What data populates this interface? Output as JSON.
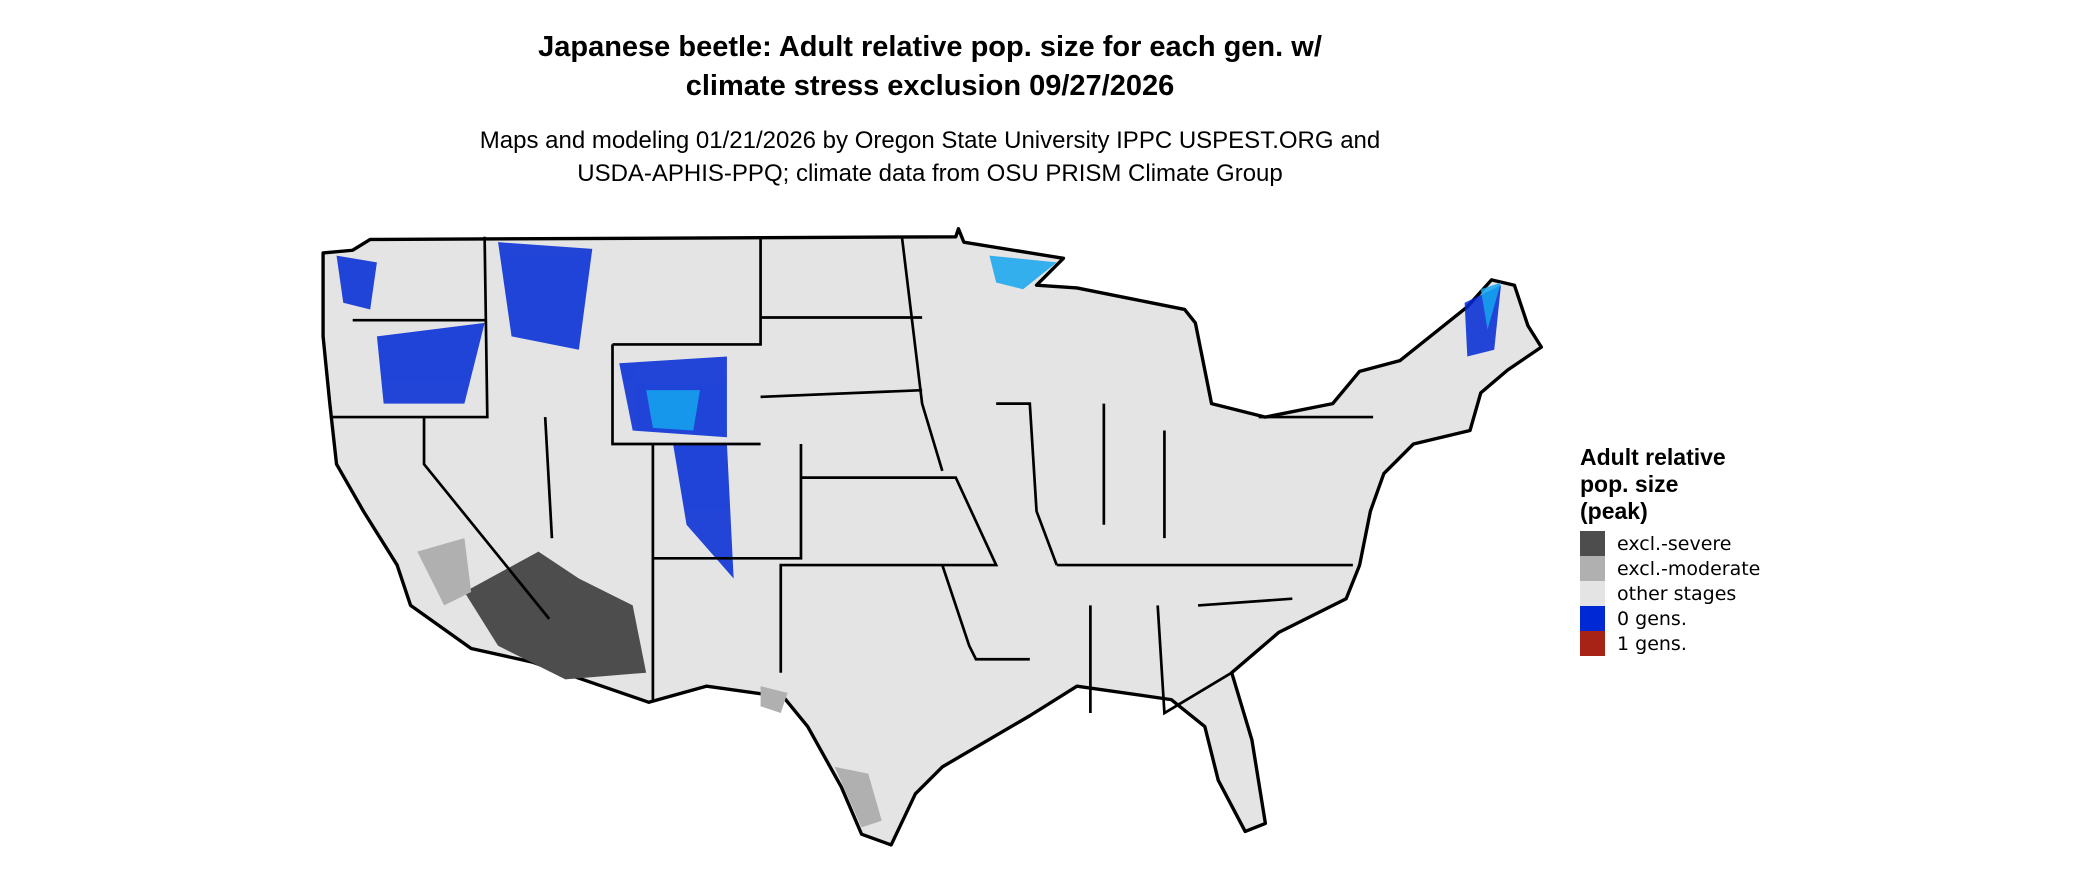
{
  "title": "Japanese beetle: Adult relative pop. size for each gen. w/ climate stress exclusion 09/27/2026",
  "title_lines": [
    "Japanese beetle: Adult relative pop. size for each gen. w/",
    "climate stress exclusion 09/27/2026"
  ],
  "subtitle_lines": [
    "Maps and modeling 01/21/2026 by Oregon State University IPPC USPEST.ORG and",
    "USDA-APHIS-PPQ; climate data from OSU PRISM Climate Group"
  ],
  "map": {
    "region": "Conterminous United States",
    "base_color": "#e4e4e4",
    "border_color": "#000000"
  },
  "legend": {
    "title_lines": [
      "Adult relative",
      "pop. size",
      "(peak)"
    ],
    "items": [
      {
        "label": "excl.-severe",
        "color": "#4d4d4d"
      },
      {
        "label": "excl.-moderate",
        "color": "#b0b0b0"
      },
      {
        "label": "other stages",
        "color": "#e4e4e4"
      },
      {
        "label": "0 gens.",
        "color": "#0029d6"
      },
      {
        "label": "1 gens.",
        "color": "#a62315"
      }
    ]
  }
}
